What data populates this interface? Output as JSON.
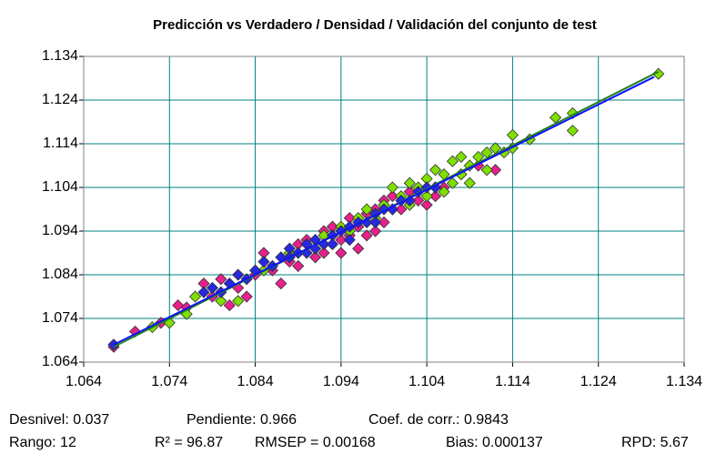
{
  "chart_data": {
    "type": "scatter",
    "title": "Predicción vs Verdadero  /  Densidad  /  Validación del conjunto de test",
    "xlim": [
      1.064,
      1.134
    ],
    "ylim": [
      1.064,
      1.134
    ],
    "xticks": [
      1.064,
      1.074,
      1.084,
      1.094,
      1.104,
      1.114,
      1.124,
      1.134
    ],
    "yticks": [
      1.064,
      1.074,
      1.084,
      1.094,
      1.104,
      1.114,
      1.124,
      1.134
    ],
    "grid": true,
    "grid_color": "#008080",
    "series": [
      {
        "color": "#e8208c",
        "x": [
          1.0675,
          1.07,
          1.073,
          1.075,
          1.076,
          1.078,
          1.079,
          1.08,
          1.081,
          1.082,
          1.083,
          1.084,
          1.085,
          1.086,
          1.087,
          1.088,
          1.089,
          1.089,
          1.09,
          1.091,
          1.092,
          1.092,
          1.093,
          1.094,
          1.094,
          1.095,
          1.095,
          1.096,
          1.096,
          1.097,
          1.097,
          1.098,
          1.098,
          1.099,
          1.099,
          1.1,
          1.101,
          1.102,
          1.103,
          1.104,
          1.105,
          1.106,
          1.108,
          1.11,
          1.112
        ],
        "y": [
          1.0675,
          1.071,
          1.073,
          1.077,
          1.0765,
          1.082,
          1.079,
          1.083,
          1.077,
          1.081,
          1.079,
          1.084,
          1.089,
          1.085,
          1.082,
          1.087,
          1.091,
          1.086,
          1.092,
          1.088,
          1.094,
          1.089,
          1.095,
          1.092,
          1.089,
          1.097,
          1.093,
          1.095,
          1.09,
          1.098,
          1.093,
          1.099,
          1.094,
          1.101,
          1.096,
          1.102,
          1.099,
          1.103,
          1.101,
          1.1,
          1.102,
          1.104,
          1.107,
          1.109,
          1.108
        ]
      },
      {
        "color": "#7ee000",
        "x": [
          1.072,
          1.074,
          1.076,
          1.077,
          1.08,
          1.082,
          1.085,
          1.088,
          1.09,
          1.092,
          1.094,
          1.095,
          1.096,
          1.097,
          1.098,
          1.099,
          1.1,
          1.1,
          1.101,
          1.102,
          1.102,
          1.103,
          1.104,
          1.104,
          1.105,
          1.105,
          1.106,
          1.106,
          1.107,
          1.107,
          1.108,
          1.108,
          1.109,
          1.109,
          1.11,
          1.111,
          1.111,
          1.112,
          1.113,
          1.114,
          1.114,
          1.116,
          1.119,
          1.121,
          1.121,
          1.131
        ],
        "y": [
          1.072,
          1.073,
          1.075,
          1.079,
          1.078,
          1.078,
          1.085,
          1.089,
          1.091,
          1.093,
          1.095,
          1.094,
          1.097,
          1.099,
          1.097,
          1.1,
          1.104,
          1.099,
          1.102,
          1.105,
          1.1,
          1.104,
          1.106,
          1.102,
          1.108,
          1.104,
          1.107,
          1.103,
          1.11,
          1.105,
          1.111,
          1.107,
          1.109,
          1.105,
          1.111,
          1.112,
          1.108,
          1.113,
          1.112,
          1.116,
          1.113,
          1.115,
          1.12,
          1.121,
          1.117,
          1.13
        ]
      },
      {
        "color": "#2828e0",
        "x": [
          1.0675,
          1.078,
          1.079,
          1.08,
          1.081,
          1.082,
          1.083,
          1.084,
          1.085,
          1.086,
          1.087,
          1.088,
          1.088,
          1.089,
          1.09,
          1.09,
          1.091,
          1.091,
          1.092,
          1.093,
          1.093,
          1.094,
          1.095,
          1.095,
          1.096,
          1.097,
          1.098,
          1.098,
          1.099,
          1.1,
          1.101,
          1.102,
          1.103,
          1.104,
          1.105
        ],
        "y": [
          1.068,
          1.08,
          1.081,
          1.08,
          1.082,
          1.084,
          1.083,
          1.085,
          1.087,
          1.086,
          1.088,
          1.09,
          1.088,
          1.089,
          1.091,
          1.089,
          1.092,
          1.09,
          1.091,
          1.093,
          1.091,
          1.094,
          1.095,
          1.092,
          1.096,
          1.096,
          1.098,
          1.096,
          1.099,
          1.099,
          1.101,
          1.101,
          1.103,
          1.104,
          1.104
        ]
      }
    ],
    "lines": [
      {
        "color": "#208020",
        "x": [
          1.0675,
          1.131
        ],
        "y": [
          1.0675,
          1.1305
        ]
      },
      {
        "color": "#1010ff",
        "x": [
          1.0675,
          1.1305
        ],
        "y": [
          1.068,
          1.1293
        ]
      }
    ],
    "annotations": [
      [
        "Desnivel: 0.037",
        "Pendiente: 0.966",
        "Coef. de corr.: 0.9843"
      ],
      [
        "Rango: 12",
        "R² = 96.87",
        "RMSEP = 0.00168",
        "Bias: 0.000137",
        "RPD: 5.67"
      ]
    ]
  }
}
